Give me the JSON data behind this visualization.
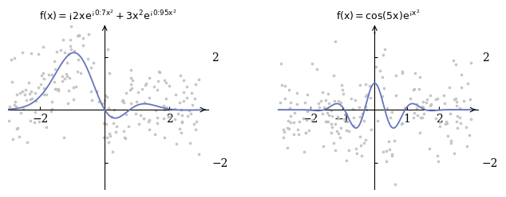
{
  "title1": "$f(x) = -2xe^{-0.7x^2} + 3x^2e^{-0.95x^2}$",
  "title2": "$f(x) = \\cos(5x)e^{-x^2}$",
  "plot1_xticks": [
    -2,
    2
  ],
  "plot1_yticks": [
    -2,
    2
  ],
  "plot2_xticks": [
    -2,
    -1,
    1,
    2
  ],
  "plot2_yticks": [
    -2,
    2
  ],
  "xlim": [
    -3.0,
    3.2
  ],
  "ylim": [
    -3.0,
    3.2
  ],
  "line_color": "#6674c0",
  "scatter_color": "#c0c0c0",
  "scatter_alpha": 0.9,
  "scatter_size": 7,
  "n_scatter": 200,
  "noise_std": 0.9,
  "seed1": 42,
  "seed2": 77,
  "bg_color": "#ffffff",
  "tick_fontsize": 10,
  "title_fontsize": 9
}
